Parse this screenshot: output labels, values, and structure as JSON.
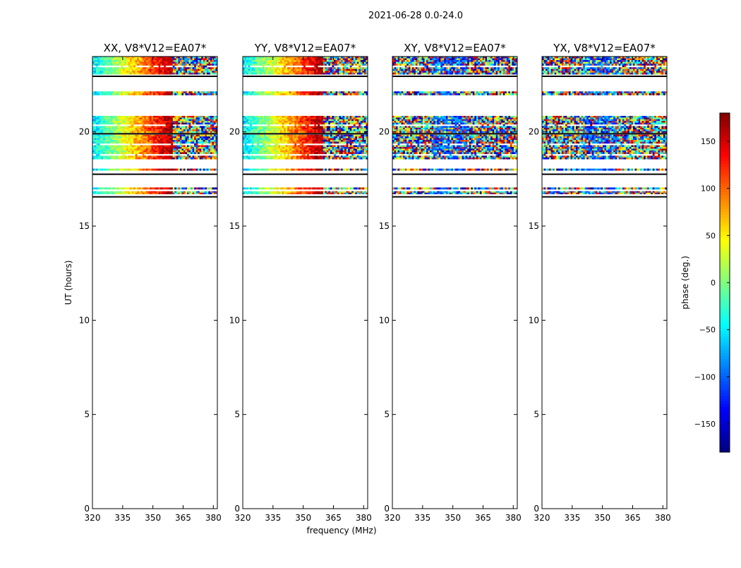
{
  "figure": {
    "suptitle": "2021-06-28 0.0-24.0"
  },
  "chart_data": {
    "type": "heatmap",
    "ylabel": "UT (hours)",
    "xlabel": "frequency (MHz)",
    "xlim": [
      320,
      382
    ],
    "ylim": [
      0,
      24
    ],
    "xticks": [
      320,
      335,
      350,
      365,
      380
    ],
    "yticks": [
      0,
      5,
      10,
      15,
      20
    ],
    "colorbar": {
      "label": "phase (deg.)",
      "range": [
        -180,
        180
      ],
      "ticks": [
        150,
        100,
        50,
        0,
        -50,
        -100,
        -150
      ],
      "tick_labels": [
        "150",
        "100",
        "50",
        "0",
        "−50",
        "−100",
        "−150"
      ],
      "colormap": [
        "#00007f",
        "#0000ff",
        "#007fff",
        "#00ffff",
        "#7fff7f",
        "#ffff00",
        "#ff7f00",
        "#ff0000",
        "#7f0000"
      ]
    },
    "panels": [
      {
        "title": "XX, V8*V12=EA07*",
        "style": "smooth"
      },
      {
        "title": "YY, V8*V12=EA07*",
        "style": "smooth"
      },
      {
        "title": "XY, V8*V12=EA07*",
        "style": "noisy"
      },
      {
        "title": "YX, V8*V12=EA07*",
        "style": "noisy"
      }
    ],
    "data_bands_ut": [
      [
        16.7,
        16.85
      ],
      [
        16.95,
        17.05
      ],
      [
        17.95,
        18.05
      ],
      [
        18.55,
        19.85
      ],
      [
        19.95,
        20.85
      ],
      [
        21.95,
        22.15
      ],
      [
        23.05,
        24.0
      ]
    ],
    "gap_lines_ut": [
      16.55,
      17.75,
      19.9,
      22.95
    ]
  }
}
